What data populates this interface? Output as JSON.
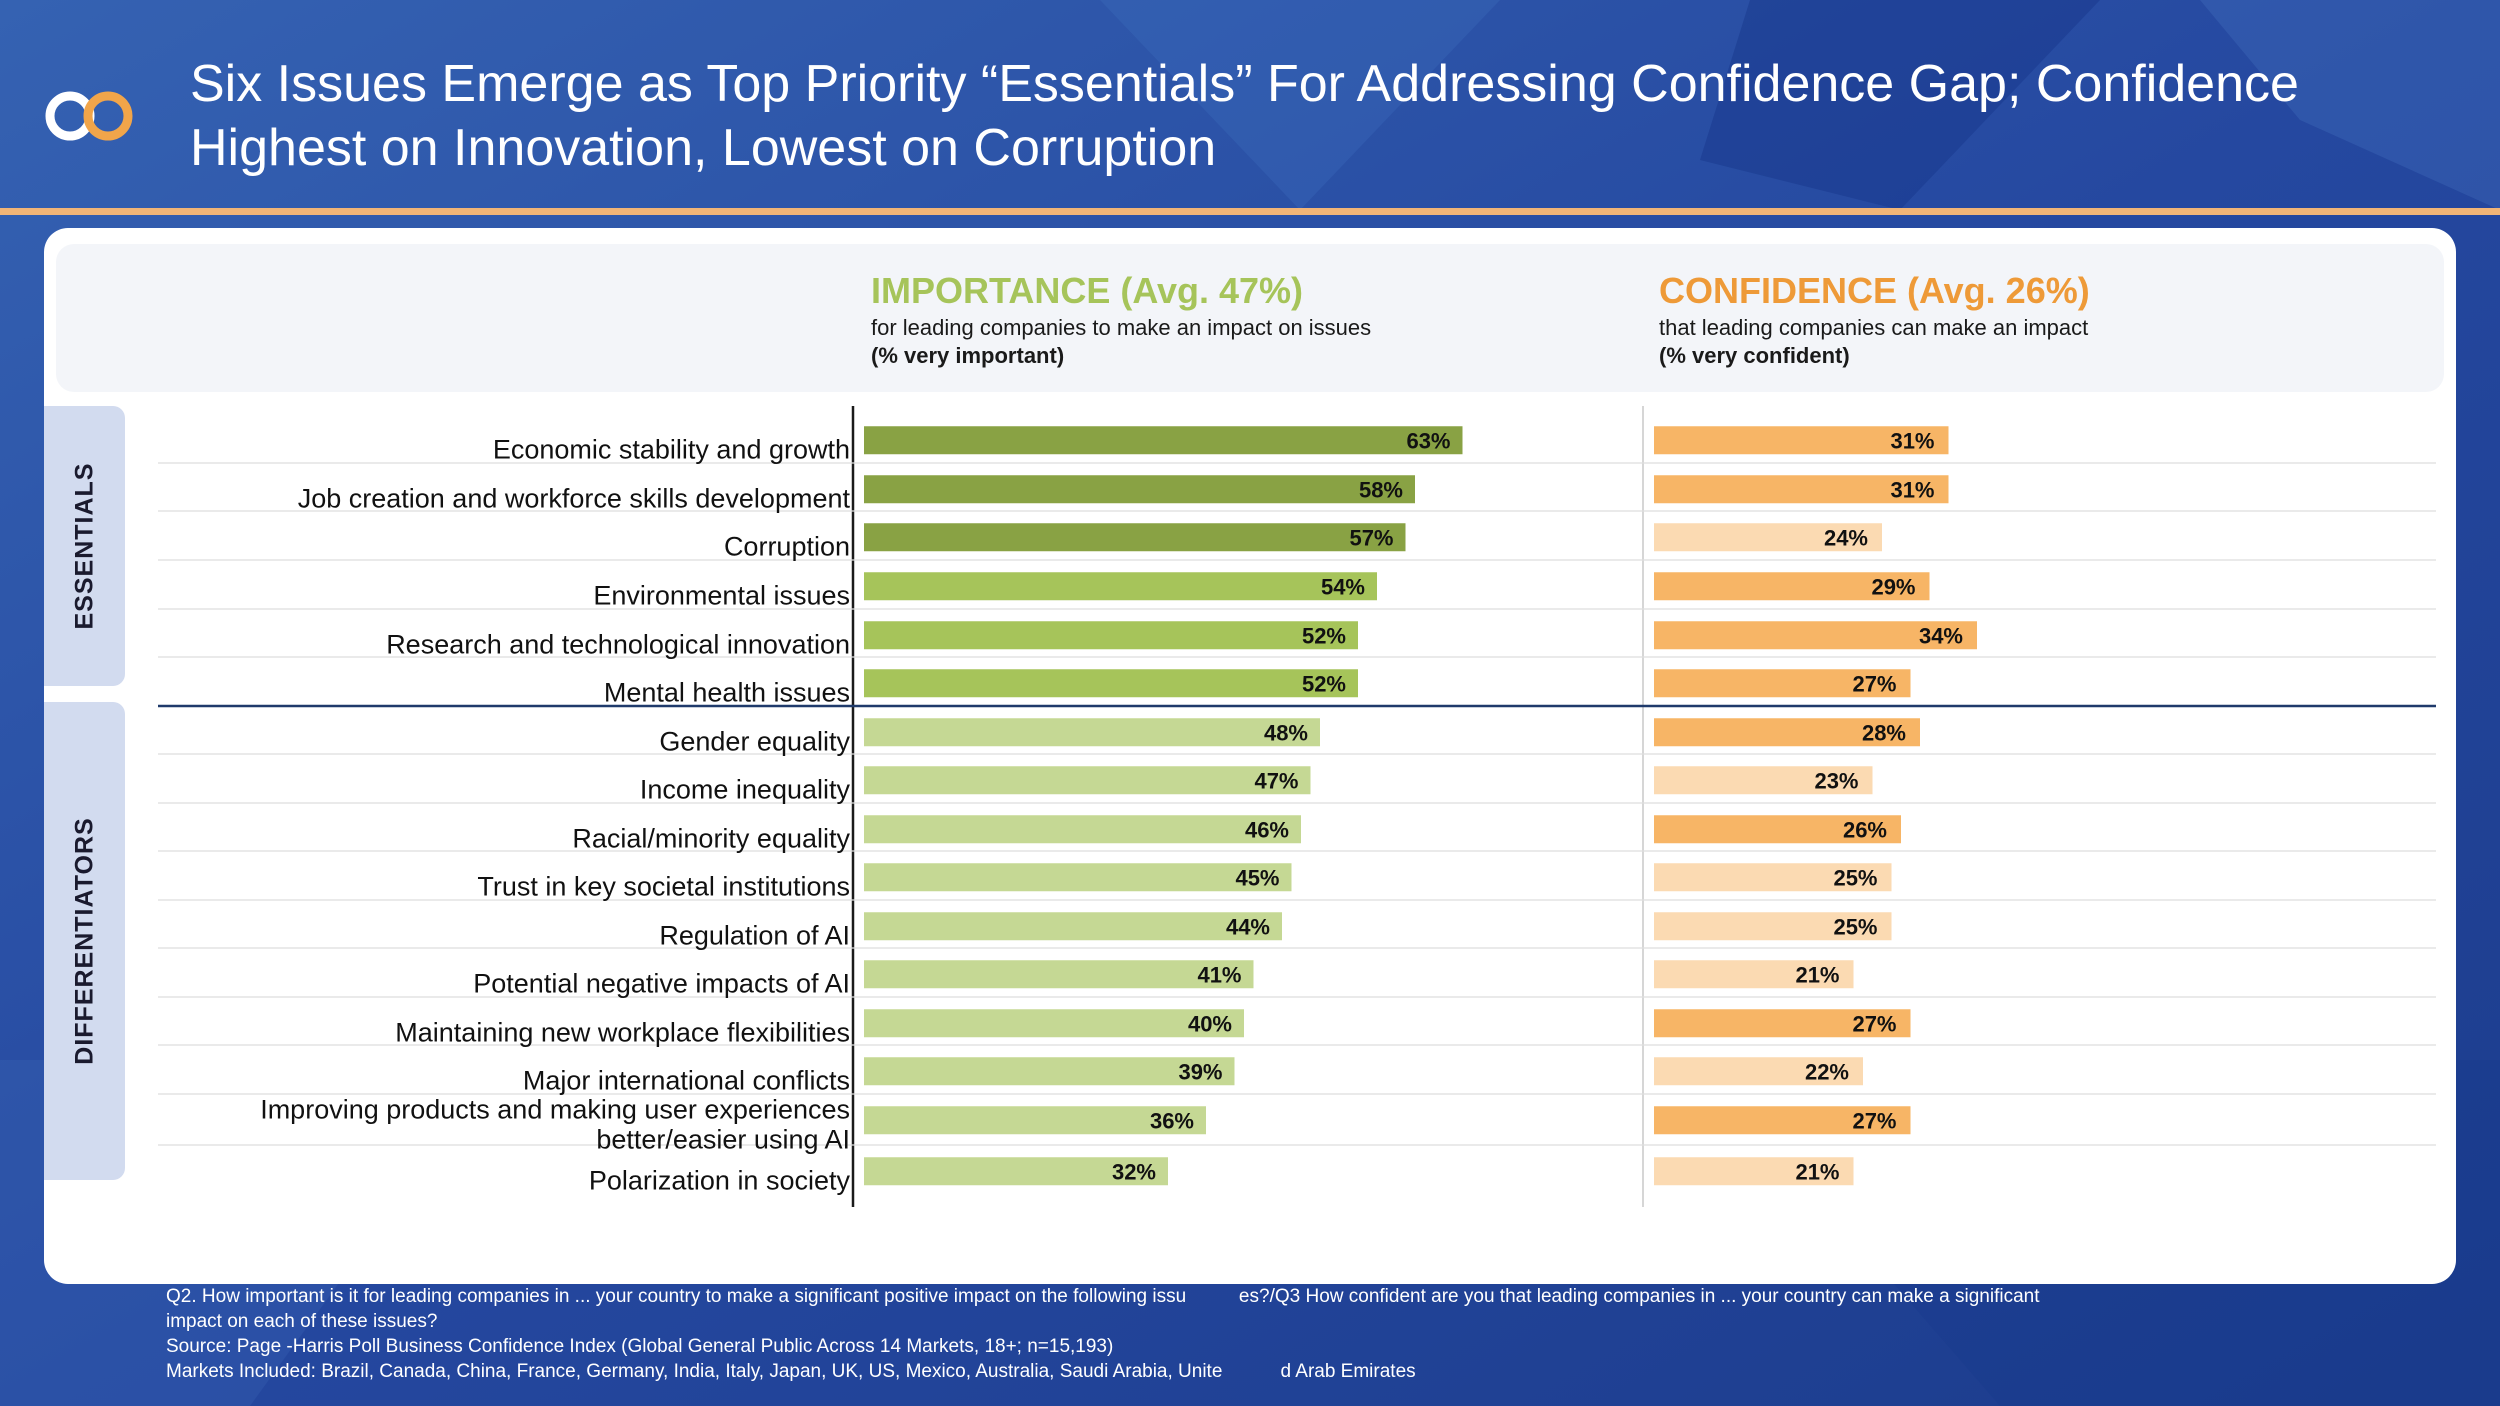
{
  "title": {
    "line1": "Six Issues Emerge as Top Priority “Essentials” For Addressing Confidence Gap; Confidence",
    "line2": "Highest on Innovation, Lowest on Corruption"
  },
  "colors": {
    "importance_dark": "#89a244",
    "importance_mid": "#a6c45a",
    "importance_light": "#c5d894",
    "confidence_dark": "#f7b566",
    "confidence_light": "#fbdab2",
    "accent_blue": "#2b4f9e"
  },
  "groups": {
    "essentials": "ESSENTIALS",
    "differentiators": "DIFFERENTIATORS"
  },
  "importance_header": {
    "title": "IMPORTANCE (Avg. 47%)",
    "subtitle": "for leading companies to make an impact on issues",
    "measure": "(% very important)"
  },
  "confidence_header": {
    "title": "CONFIDENCE (Avg. 26%)",
    "subtitle": "that leading companies can make an impact",
    "measure": "(% very confident)"
  },
  "chart_data": {
    "type": "bar",
    "orientation": "horizontal",
    "title": "Six Issues Emerge as Top Priority “Essentials” For Addressing Confidence Gap; Confidence Highest on Innovation, Lowest on Corruption",
    "categories": [
      [
        "Economic stability and growth"
      ],
      [
        "Job creation and workforce skills development"
      ],
      [
        "Corruption"
      ],
      [
        "Environmental issues"
      ],
      [
        "Research and technological innovation"
      ],
      [
        "Mental health issues"
      ],
      [
        "Gender equality"
      ],
      [
        "Income inequality"
      ],
      [
        "Racial/minority equality"
      ],
      [
        "Trust in key societal institutions"
      ],
      [
        "Regulation of AI"
      ],
      [
        "Potential negative impacts of AI"
      ],
      [
        "Maintaining new workplace flexibilities"
      ],
      [
        "Major international conflicts"
      ],
      [
        "Improving products and making user experiences",
        "better/easier using AI"
      ],
      [
        "Polarization in society"
      ]
    ],
    "groups": [
      "essentials",
      "essentials",
      "essentials",
      "essentials",
      "essentials",
      "essentials",
      "differentiators",
      "differentiators",
      "differentiators",
      "differentiators",
      "differentiators",
      "differentiators",
      "differentiators",
      "differentiators",
      "differentiators",
      "differentiators"
    ],
    "series": [
      {
        "name": "Importance (% very important)",
        "values": [
          63,
          58,
          57,
          54,
          52,
          52,
          48,
          47,
          46,
          45,
          44,
          41,
          40,
          39,
          36,
          32
        ],
        "shades": [
          "dark",
          "dark",
          "dark",
          "mid",
          "mid",
          "mid",
          "light",
          "light",
          "light",
          "light",
          "light",
          "light",
          "light",
          "light",
          "light",
          "light"
        ],
        "average": 47
      },
      {
        "name": "Confidence (% very confident)",
        "values": [
          31,
          31,
          24,
          29,
          34,
          27,
          28,
          23,
          26,
          25,
          25,
          21,
          27,
          22,
          27,
          21
        ],
        "shades": [
          "dark",
          "dark",
          "light",
          "dark",
          "dark",
          "dark",
          "dark",
          "light",
          "dark",
          "light",
          "light",
          "light",
          "dark",
          "light",
          "dark",
          "light"
        ],
        "average": 26
      }
    ],
    "value_suffix": "%",
    "xlim": [
      0,
      100
    ]
  },
  "footnote": {
    "line1": "Q2. How important is it for leading companies in ... your country to make a significant positive impact on the following issu          es?/Q3 How confident are you that leading companies in ... your country can make a significant",
    "line2": "impact on each of these issues?",
    "line3": "Source: Page -Harris Poll Business Confidence Index (Global General Public Across 14 Markets, 18+; n=15,193)",
    "line4": "Markets Included: Brazil, Canada, China, France, Germany, India, Italy, Japan, UK, US, Mexico, Australia, Saudi Arabia, Unite           d Arab Emirates"
  }
}
